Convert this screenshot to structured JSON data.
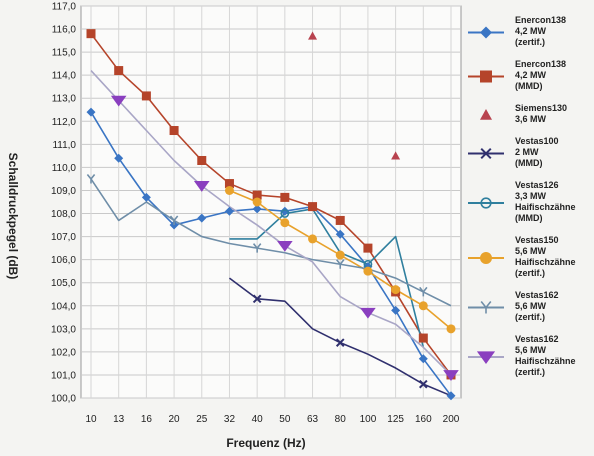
{
  "chart_data": {
    "type": "line",
    "title": "",
    "xlabel": "Frequenz (Hz)",
    "ylabel": "Schalldruckpegel (dB)",
    "categories": [
      "10",
      "13",
      "16",
      "20",
      "25",
      "32",
      "40",
      "50",
      "63",
      "80",
      "100",
      "125",
      "160",
      "200"
    ],
    "ylim": [
      100,
      117
    ],
    "yticks": [
      "100,0",
      "101,0",
      "102,0",
      "103,0",
      "104,0",
      "105,0",
      "106,0",
      "107,0",
      "108,0",
      "109,0",
      "110,0",
      "111,0",
      "112,0",
      "113,0",
      "114,0",
      "115,0",
      "116,0",
      "117,0"
    ],
    "grid": true,
    "legend_position": "right",
    "series": [
      {
        "name": "Enercon138 4,2 MW (zertif.)",
        "legend_lines": [
          "Enercon138",
          "4,2 MW",
          "(zertif.)"
        ],
        "color": "#3a75c4",
        "marker": "diamond",
        "values": [
          112.4,
          110.4,
          108.7,
          107.5,
          107.8,
          108.1,
          108.2,
          108.1,
          108.3,
          107.1,
          105.7,
          103.8,
          101.7,
          100.1
        ]
      },
      {
        "name": "Enercon138 4,2 MW (MMD)",
        "legend_lines": [
          "Enercon138",
          "4,2 MW",
          "(MMD)"
        ],
        "color": "#b5442a",
        "marker": "square",
        "values": [
          115.8,
          114.2,
          113.1,
          111.6,
          110.3,
          109.3,
          108.8,
          108.7,
          108.3,
          107.7,
          106.5,
          104.6,
          102.6,
          101.0
        ]
      },
      {
        "name": "Siemens130 3,6 MW",
        "legend_lines": [
          "Siemens130",
          "3,6 MW"
        ],
        "color": "#b8434f",
        "marker": "triangle",
        "values": [
          null,
          null,
          null,
          null,
          null,
          null,
          null,
          null,
          115.7,
          null,
          null,
          110.5,
          null,
          null
        ]
      },
      {
        "name": "Vestas100 2 MW (MMD)",
        "legend_lines": [
          "Vestas100",
          "2 MW",
          "(MMD)"
        ],
        "color": "#30306e",
        "marker": "x",
        "values": [
          null,
          null,
          null,
          null,
          null,
          105.2,
          104.3,
          104.2,
          103.0,
          102.4,
          101.9,
          101.3,
          100.6,
          100.1
        ]
      },
      {
        "name": "Vestas126 3,3 MW Haifischzähne (MMD)",
        "legend_lines": [
          "Vestas126",
          "3,3 MW",
          "Haifischzähne",
          "(MMD)"
        ],
        "color": "#2f7f9e",
        "marker": "circle",
        "values": [
          null,
          null,
          null,
          null,
          null,
          106.9,
          106.9,
          108.0,
          108.2,
          106.3,
          105.8,
          107.0,
          102.2,
          null
        ]
      },
      {
        "name": "Vestas150 5,6 MW Haifischzähne (zertif.)",
        "legend_lines": [
          "Vestas150",
          "5,6 MW",
          "Haifischzähne",
          "(zertif.)"
        ],
        "color": "#e8a22c",
        "marker": "circle-filled",
        "values": [
          null,
          null,
          null,
          null,
          null,
          109.0,
          108.5,
          107.6,
          106.9,
          106.2,
          105.5,
          104.7,
          104.0,
          103.0
        ]
      },
      {
        "name": "Vestas162 5,6 MW (zertif.)",
        "legend_lines": [
          "Vestas162",
          "5,6 MW",
          "(zertif.)"
        ],
        "color": "#6f8ea8",
        "marker": "y",
        "values": [
          109.5,
          107.7,
          108.5,
          107.7,
          107.0,
          106.7,
          106.5,
          106.3,
          106.0,
          105.8,
          105.6,
          105.2,
          104.6,
          104.0
        ]
      },
      {
        "name": "Vestas162 5,6 MW Haifischzähne (zertif.)",
        "legend_lines": [
          "Vestas162",
          "5,6 MW",
          "Haifischzähne",
          "(zertif.)"
        ],
        "color": "#8a3fbf",
        "line_color": "#a9a6c6",
        "marker": "triangle-down",
        "values": [
          114.2,
          112.9,
          111.6,
          110.3,
          109.2,
          108.3,
          107.5,
          106.6,
          105.9,
          104.4,
          103.7,
          103.2,
          102.2,
          101.0
        ]
      }
    ]
  }
}
